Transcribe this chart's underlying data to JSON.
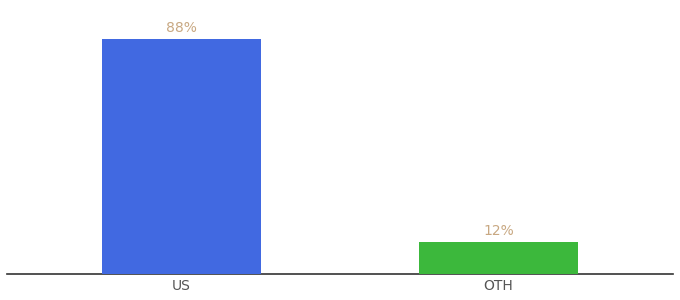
{
  "categories": [
    "US",
    "OTH"
  ],
  "values": [
    88,
    12
  ],
  "bar_colors": [
    "#4169e1",
    "#3cb83c"
  ],
  "label_format": [
    "88%",
    "12%"
  ],
  "ylim": [
    0,
    100
  ],
  "background_color": "#ffffff",
  "label_color": "#c8a882",
  "tick_color": "#555555",
  "bar_width": 0.5,
  "title_fontsize": 10,
  "label_fontsize": 10,
  "tick_fontsize": 10
}
